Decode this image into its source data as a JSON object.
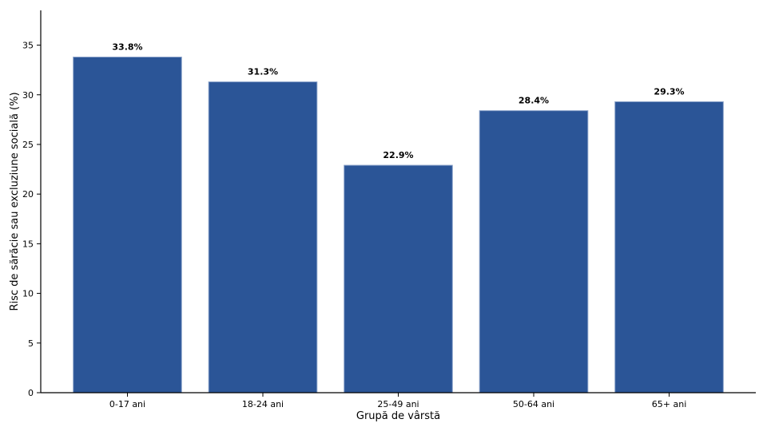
{
  "chart_data": {
    "type": "bar",
    "title": "",
    "xlabel": "Grupă de vârstă",
    "ylabel": "Risc de sărăcie sau excluziune socială (%)",
    "categories": [
      "0-17 ani",
      "18-24 ani",
      "25-49 ani",
      "50-64 ani",
      "65+ ani"
    ],
    "values": [
      33.8,
      31.3,
      22.9,
      28.4,
      29.3
    ],
    "data_labels": [
      "33.8%",
      "31.3%",
      "22.9%",
      "28.4%",
      "29.3%"
    ],
    "ylim": [
      0,
      38.5
    ],
    "yticks": [
      0,
      5,
      10,
      15,
      20,
      25,
      30,
      35
    ],
    "grid": false,
    "bar_color": "#2b5597",
    "bar_edge_color": "#8aa2c9"
  }
}
